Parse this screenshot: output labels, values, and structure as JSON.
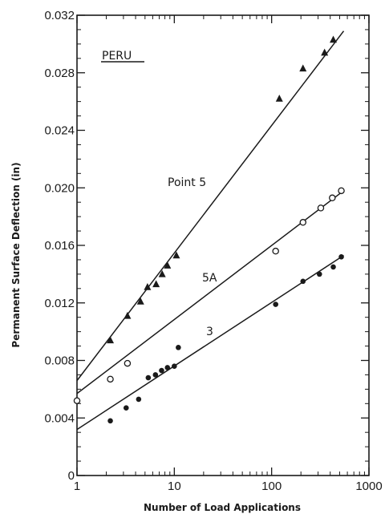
{
  "chart_data": {
    "type": "scatter",
    "title": "PERU",
    "xlabel": "Number of Load Applications",
    "ylabel": "Permanent Surface Deflection (in)",
    "x_scale": "log",
    "xlim": [
      1,
      1000
    ],
    "ylim": [
      0,
      0.032
    ],
    "x_ticks": [
      "1",
      "10",
      "100",
      "1000"
    ],
    "y_ticks": [
      "0",
      "0.004",
      "0.008",
      "0.012",
      "0.016",
      "0.020",
      "0.024",
      "0.028",
      "0.032"
    ],
    "grid": false,
    "series": [
      {
        "name": "Point 5",
        "marker": "filled-triangle",
        "points": [
          [
            2.2,
            0.0094
          ],
          [
            3.3,
            0.0111
          ],
          [
            4.5,
            0.0121
          ],
          [
            5.3,
            0.0131
          ],
          [
            6.5,
            0.0133
          ],
          [
            7.5,
            0.014
          ],
          [
            8.5,
            0.0146
          ],
          [
            10.5,
            0.0153
          ],
          [
            120,
            0.0262
          ],
          [
            210,
            0.0283
          ],
          [
            350,
            0.0294
          ],
          [
            430,
            0.0303
          ]
        ],
        "fit": [
          [
            1,
            0.0066
          ],
          [
            550,
            0.0309
          ]
        ]
      },
      {
        "name": "5A",
        "marker": "open-circle",
        "points": [
          [
            1,
            0.0052
          ],
          [
            2.2,
            0.0067
          ],
          [
            3.3,
            0.0078
          ],
          [
            110,
            0.0156
          ],
          [
            210,
            0.0176
          ],
          [
            320,
            0.0186
          ],
          [
            420,
            0.0193
          ],
          [
            520,
            0.0198
          ]
        ],
        "fit": [
          [
            1,
            0.0057
          ],
          [
            550,
            0.0198
          ]
        ]
      },
      {
        "name": "3",
        "marker": "filled-circle",
        "points": [
          [
            2.2,
            0.0038
          ],
          [
            3.2,
            0.0047
          ],
          [
            4.3,
            0.0053
          ],
          [
            5.4,
            0.0068
          ],
          [
            6.4,
            0.007
          ],
          [
            7.4,
            0.0073
          ],
          [
            8.5,
            0.0075
          ],
          [
            10,
            0.0076
          ],
          [
            11,
            0.0089
          ],
          [
            110,
            0.0119
          ],
          [
            210,
            0.0135
          ],
          [
            310,
            0.014
          ],
          [
            430,
            0.0145
          ],
          [
            520,
            0.0152
          ]
        ],
        "fit": [
          [
            1,
            0.0032
          ],
          [
            550,
            0.0153
          ]
        ]
      }
    ]
  }
}
